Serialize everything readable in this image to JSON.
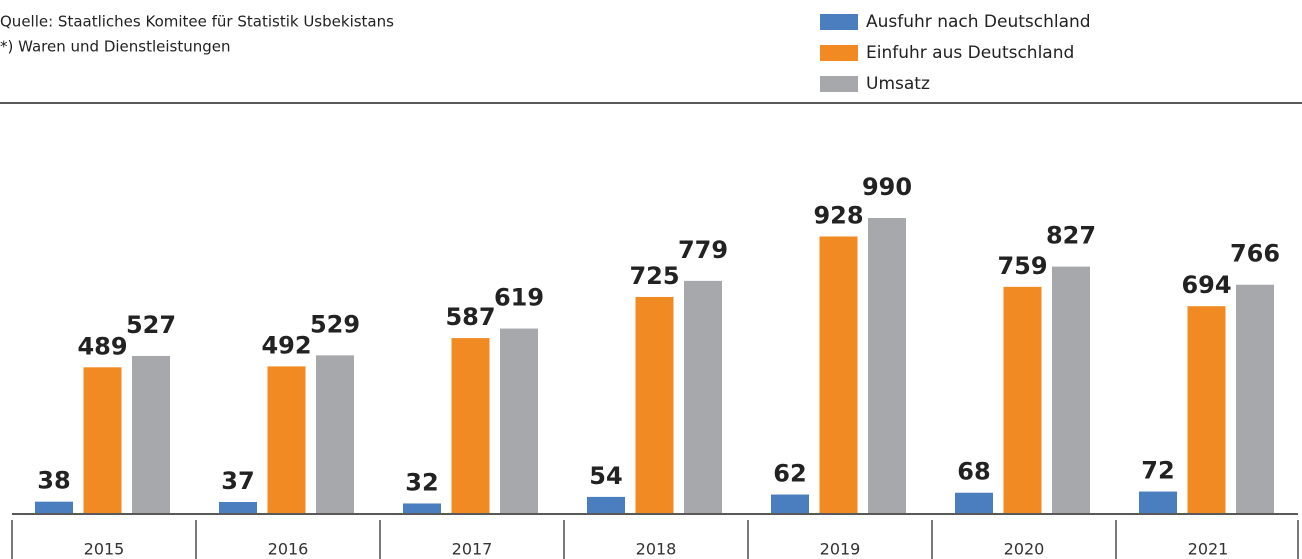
{
  "chart_data": {
    "type": "bar",
    "source": "Quelle: Staatliches Komitee für Statistik Usbekistans",
    "footnote": "*) Waren und Dienstleistungen",
    "categories": [
      "2015",
      "2016",
      "2017",
      "2018",
      "2019",
      "2020",
      "2021"
    ],
    "series": [
      {
        "name": "Ausfuhr nach Deutschland",
        "color": "#4a7ebf",
        "values": [
          38,
          37,
          32,
          54,
          62,
          68,
          72
        ]
      },
      {
        "name": "Einfuhr aus Deutschland",
        "color": "#f28a24",
        "values": [
          489,
          492,
          587,
          725,
          928,
          759,
          694
        ]
      },
      {
        "name": "Umsatz",
        "color": "#a7a8ab",
        "values": [
          527,
          529,
          619,
          779,
          990,
          827,
          766
        ]
      }
    ]
  }
}
